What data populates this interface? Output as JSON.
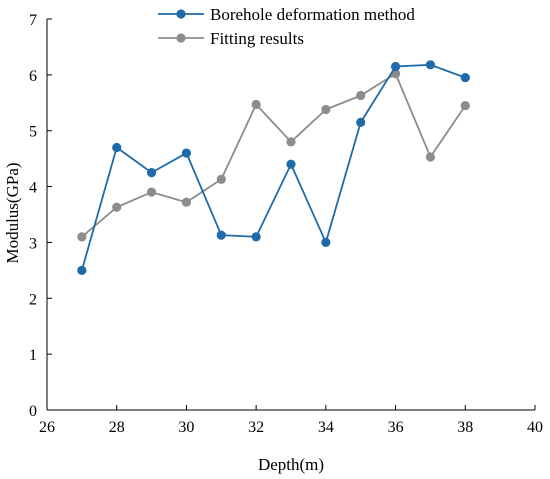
{
  "chart_data": {
    "type": "line",
    "xlabel": "Depth(m)",
    "ylabel": "Modulus(GPa)",
    "xlim": [
      26,
      40
    ],
    "ylim": [
      0,
      7
    ],
    "xticks": [
      26,
      28,
      30,
      32,
      34,
      36,
      38,
      40
    ],
    "yticks": [
      0,
      1,
      2,
      3,
      4,
      5,
      6,
      7
    ],
    "grid": false,
    "legend_position": "top-center",
    "x": [
      27,
      28,
      29,
      30,
      31,
      32,
      33,
      34,
      35,
      36,
      37,
      38
    ],
    "series": [
      {
        "name": "Borehole deformation method",
        "color": "#1f6aa8",
        "marker": "circle",
        "values": [
          2.5,
          4.7,
          4.25,
          4.6,
          3.13,
          3.1,
          4.4,
          3.0,
          5.15,
          6.15,
          6.18,
          5.95
        ]
      },
      {
        "name": "Fitting results",
        "color": "#8c8c8c",
        "marker": "circle",
        "values": [
          3.1,
          3.63,
          3.9,
          3.72,
          4.13,
          5.47,
          4.8,
          5.38,
          5.63,
          6.02,
          4.53,
          5.45
        ]
      }
    ]
  }
}
